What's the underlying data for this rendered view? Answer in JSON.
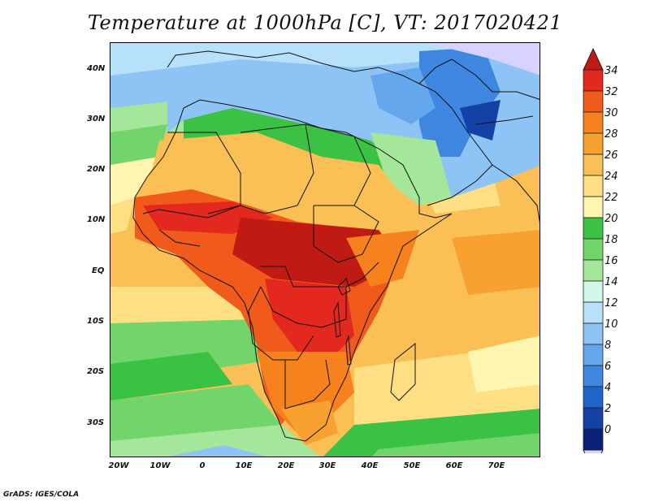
{
  "title": "Temperature at 1000hPa [C], VT: 2017020421",
  "credit": "GrADS: IGES/COLA",
  "map": {
    "lon_range": [
      -23,
      80
    ],
    "lat_range": [
      -37,
      45
    ],
    "y_labels": [
      "40N",
      "30N",
      "20N",
      "10N",
      "EQ",
      "10S",
      "20S",
      "30S"
    ],
    "x_labels": [
      "20W",
      "10W",
      "0",
      "10E",
      "20E",
      "30E",
      "40E",
      "50E",
      "60E",
      "70E"
    ]
  },
  "colorbar": {
    "labels": [
      "34",
      "32",
      "30",
      "28",
      "26",
      "24",
      "22",
      "20",
      "18",
      "16",
      "14",
      "12",
      "10",
      "8",
      "6",
      "4",
      "2",
      "0"
    ],
    "colors": [
      "#e2281f",
      "#f05a1a",
      "#f5821c",
      "#f8a030",
      "#fac056",
      "#fedf84",
      "#fef5b0",
      "#3bc144",
      "#72d56b",
      "#a4e69a",
      "#d4f6ea",
      "#b7e0fa",
      "#8ec4f5",
      "#64a7ec",
      "#3e86e0",
      "#2063cb",
      "#1341a5",
      "#0a1f77"
    ],
    "over_color": "#c01a14",
    "under_color": "#d7d2ff"
  }
}
